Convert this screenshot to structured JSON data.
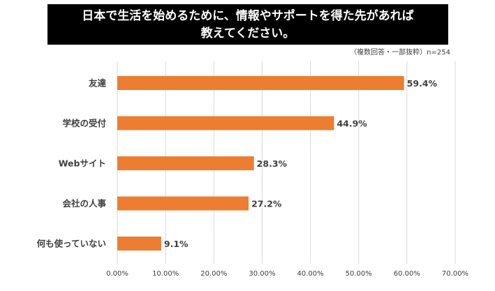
{
  "title": {
    "line1": "日本で生活を始めるために、情報やサポートを得た先があれば",
    "line2": "教えてください。"
  },
  "note": "（複数回答・一部抜粋）n=254",
  "chart_data": {
    "type": "bar",
    "orientation": "horizontal",
    "categories": [
      "友達",
      "学校の受付",
      "Webサイト",
      "会社の人事",
      "何も使っていない"
    ],
    "values": [
      59.4,
      44.9,
      28.3,
      27.2,
      9.1
    ],
    "value_labels": [
      "59.4%",
      "44.9%",
      "28.3%",
      "27.2%",
      "9.1%"
    ],
    "xlim": [
      0,
      70
    ],
    "xticks": [
      0,
      10,
      20,
      30,
      40,
      50,
      60,
      70
    ],
    "xtick_labels": [
      "0.00%",
      "10.00%",
      "20.00%",
      "30.00%",
      "40.00%",
      "50.00%",
      "60.00%",
      "70.00%"
    ],
    "grid": true,
    "bar_color": "#ED7D31",
    "grid_color": "#D9D9D9",
    "legend": "none"
  }
}
